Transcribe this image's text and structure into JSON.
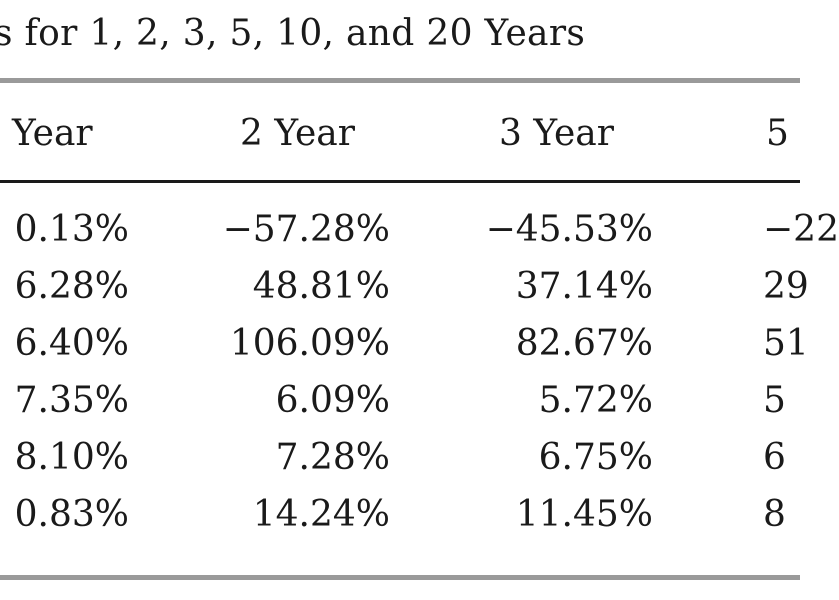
{
  "caption": "s for 1, 2, 3, 5, 10, and 20 Years",
  "headers": [
    "Year",
    "2 Year",
    "3 Year",
    "5"
  ],
  "rows": [
    [
      "0.13%",
      "−57.28%",
      "−45.53%",
      "−22"
    ],
    [
      "6.28%",
      "48.81%",
      "37.14%",
      "29"
    ],
    [
      "6.40%",
      "106.09%",
      "82.67%",
      "51"
    ],
    [
      "7.35%",
      "6.09%",
      "5.72%",
      "5"
    ],
    [
      "8.10%",
      "7.28%",
      "6.75%",
      "6"
    ],
    [
      "0.83%",
      "14.24%",
      "11.45%",
      "8"
    ]
  ]
}
